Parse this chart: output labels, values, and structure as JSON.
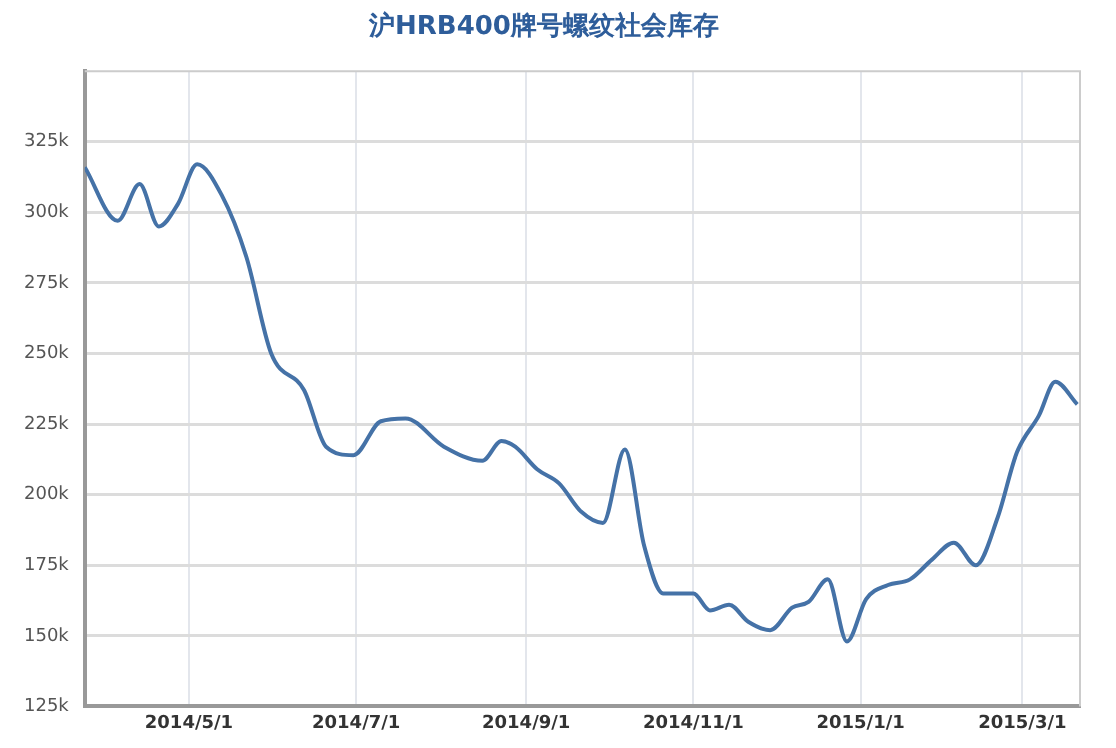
{
  "chart_data": {
    "type": "line",
    "title": "沪HRB400牌号螺纹社会库存",
    "x": [
      "2014-03-24",
      "2014-04-05",
      "2014-04-13",
      "2014-04-20",
      "2014-04-27",
      "2014-05-04",
      "2014-05-13",
      "2014-05-22",
      "2014-05-31",
      "2014-06-12",
      "2014-06-20",
      "2014-06-30",
      "2014-07-10",
      "2014-07-19",
      "2014-08-02",
      "2014-08-16",
      "2014-08-23",
      "2014-08-28",
      "2014-09-05",
      "2014-09-13",
      "2014-09-21",
      "2014-09-29",
      "2014-10-07",
      "2014-10-14",
      "2014-10-21",
      "2014-11-01",
      "2014-11-07",
      "2014-11-14",
      "2014-11-21",
      "2014-11-29",
      "2014-12-07",
      "2014-12-13",
      "2014-12-20",
      "2014-12-27",
      "2015-01-03",
      "2015-01-11",
      "2015-01-19",
      "2015-01-27",
      "2015-02-04",
      "2015-02-12",
      "2015-02-20",
      "2015-02-27",
      "2015-03-07",
      "2015-03-13",
      "2015-03-21"
    ],
    "series": [
      {
        "color": "#4572a7",
        "values": [
          316000,
          297000,
          310000,
          295000,
          303000,
          317000,
          306000,
          284000,
          250000,
          237000,
          217000,
          214000,
          226000,
          227000,
          217000,
          212000,
          219000,
          217000,
          209000,
          204000,
          194000,
          190000,
          216000,
          182000,
          165000,
          165000,
          159000,
          161000,
          155000,
          152000,
          160000,
          162000,
          170000,
          148000,
          163000,
          168000,
          170000,
          177000,
          183000,
          175000,
          192000,
          215000,
          228000,
          240000,
          232000
        ]
      }
    ],
    "xlim": [
      "2014-03-24",
      "2015-03-22"
    ],
    "xticks": [
      {
        "value": "2014-05-01",
        "label": "2014/5/1"
      },
      {
        "value": "2014-07-01",
        "label": "2014/7/1"
      },
      {
        "value": "2014-09-01",
        "label": "2014/9/1"
      },
      {
        "value": "2014-11-01",
        "label": "2014/11/1"
      },
      {
        "value": "2015-01-01",
        "label": "2015/1/1"
      },
      {
        "value": "2015-03-01",
        "label": "2015/3/1"
      }
    ],
    "ylim": [
      125000,
      350000
    ],
    "yticks": [
      {
        "value": 125000,
        "label": "125k"
      },
      {
        "value": 150000,
        "label": "150k"
      },
      {
        "value": 175000,
        "label": "175k"
      },
      {
        "value": 200000,
        "label": "200k"
      },
      {
        "value": 225000,
        "label": "225k"
      },
      {
        "value": 250000,
        "label": "250k"
      },
      {
        "value": 275000,
        "label": "275k"
      },
      {
        "value": 300000,
        "label": "300k"
      },
      {
        "value": 325000,
        "label": "325k"
      }
    ],
    "grid": true,
    "legend": false,
    "marker": "none",
    "line_style": "solid"
  }
}
